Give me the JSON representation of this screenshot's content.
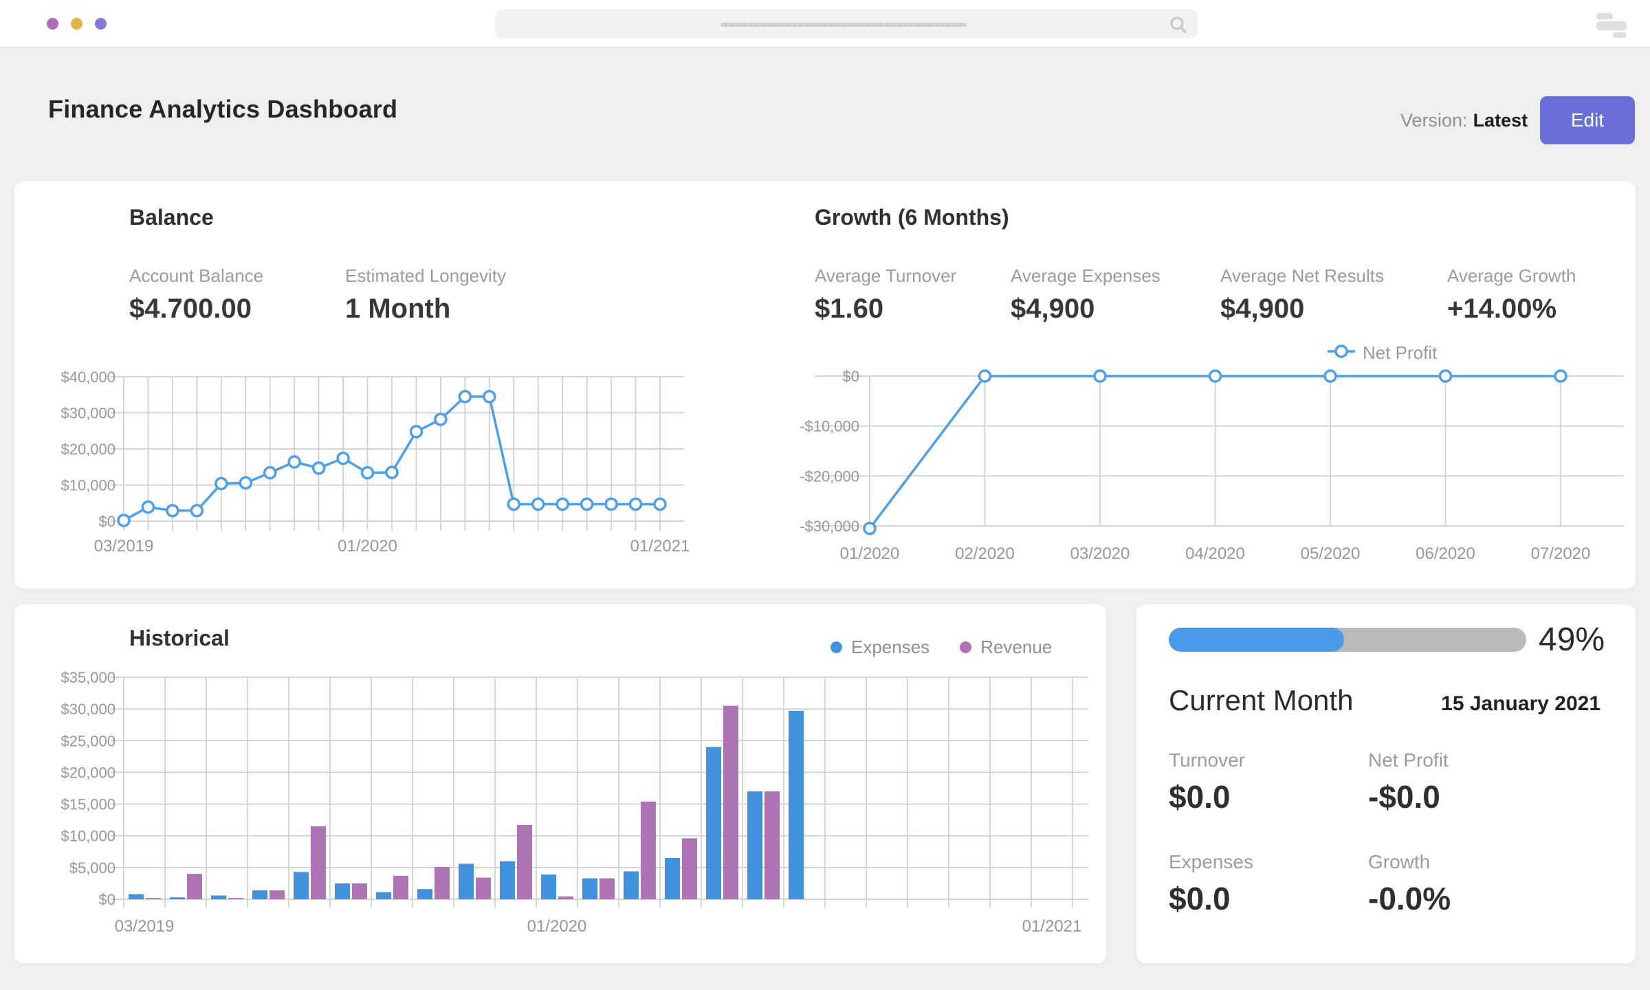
{
  "topbar": {
    "window_dots": [
      {
        "name": "dot-1",
        "color": "#b16ab6"
      },
      {
        "name": "dot-2",
        "color": "#e2b44c"
      },
      {
        "name": "dot-3",
        "color": "#8478dd"
      }
    ],
    "search": {
      "value": "",
      "placeholder": ""
    }
  },
  "header": {
    "title": "Finance Analytics Dashboard",
    "version_label": "Version:",
    "version_value": "Latest",
    "edit_button": "Edit"
  },
  "balance": {
    "title": "Balance",
    "stats": [
      {
        "label": "Account Balance",
        "value": "$4.700.00"
      },
      {
        "label": "Estimated Longevity",
        "value": "1 Month"
      }
    ]
  },
  "growth": {
    "title": "Growth (6 Months)",
    "stats": [
      {
        "label": "Average Turnover",
        "value": "$1.60"
      },
      {
        "label": "Average Expenses",
        "value": "$4,900"
      },
      {
        "label": "Average Net Results",
        "value": "$4,900"
      },
      {
        "label": "Average Growth",
        "value": "+14.00%"
      }
    ],
    "legend": [
      {
        "label": "Net Profit",
        "color": "#4e9fe8"
      }
    ]
  },
  "historical": {
    "title": "Historical",
    "legend": [
      {
        "label": "Expenses",
        "color": "#4191dc"
      },
      {
        "label": "Revenue",
        "color": "#ad73b5"
      }
    ]
  },
  "current_month": {
    "progress_value": 49,
    "progress_percent": "49%",
    "title": "Current Month",
    "date": "15 January 2021",
    "stats": [
      {
        "label": "Turnover",
        "value": "$0.0"
      },
      {
        "label": "Net Profit",
        "value": "-$0.0"
      },
      {
        "label": "Expenses",
        "value": "$0.0"
      },
      {
        "label": "Growth",
        "value": "-0.0%"
      }
    ]
  },
  "chart_data": [
    {
      "id": "balance",
      "type": "line",
      "title": "Balance",
      "line_color": "#4e9fe8",
      "x": [
        "03/2019",
        "04/2019",
        "05/2019",
        "06/2019",
        "07/2019",
        "08/2019",
        "09/2019",
        "10/2019",
        "11/2019",
        "12/2019",
        "01/2020",
        "02/2020",
        "03/2020",
        "04/2020",
        "05/2020",
        "06/2020",
        "07/2020",
        "08/2020",
        "09/2020",
        "10/2020",
        "11/2020",
        "12/2020",
        "01/2021"
      ],
      "values": [
        200,
        3900,
        2900,
        2900,
        10400,
        10600,
        13400,
        16400,
        14700,
        17400,
        13400,
        13500,
        24800,
        28200,
        34500,
        34500,
        4700,
        4700,
        4700,
        4700,
        4700,
        4700,
        4700
      ],
      "ylim": [
        0,
        40000
      ],
      "yticks": [
        {
          "value": 0,
          "label": "$0"
        },
        {
          "value": 10000,
          "label": "$10,000"
        },
        {
          "value": 20000,
          "label": "$20,000"
        },
        {
          "value": 30000,
          "label": "$30,000"
        },
        {
          "value": 40000,
          "label": "$40,000"
        }
      ],
      "x_axis_labels": [
        {
          "index": 0,
          "label": "03/2019"
        },
        {
          "index": 10,
          "label": "01/2020"
        },
        {
          "index": 22,
          "label": "01/2021"
        }
      ],
      "grid": true,
      "legend_position": "none"
    },
    {
      "id": "growth",
      "type": "line",
      "title": "Growth (6 Months)",
      "line_color": "#4e9fe8",
      "series_name": "Net Profit",
      "x": [
        "01/2020",
        "02/2020",
        "03/2020",
        "04/2020",
        "05/2020",
        "06/2020",
        "07/2020"
      ],
      "values": [
        -30500,
        0,
        0,
        0,
        0,
        0,
        0
      ],
      "ylim": [
        -30000,
        0
      ],
      "yticks": [
        {
          "value": 0,
          "label": "$0"
        },
        {
          "value": -10000,
          "label": "-$10,000"
        },
        {
          "value": -20000,
          "label": "-$20,000"
        },
        {
          "value": -30000,
          "label": "-$30,000"
        }
      ],
      "grid": true,
      "legend_position": "top"
    },
    {
      "id": "historical",
      "type": "bar",
      "title": "Historical",
      "x": [
        "03/2019",
        "04/2019",
        "05/2019",
        "06/2019",
        "07/2019",
        "08/2019",
        "09/2019",
        "10/2019",
        "11/2019",
        "12/2019",
        "01/2020",
        "02/2020",
        "03/2020",
        "04/2020",
        "05/2020",
        "06/2020",
        "07/2020",
        "08/2020",
        "09/2020",
        "10/2020",
        "11/2020",
        "12/2020",
        "01/2021"
      ],
      "series": [
        {
          "name": "Expenses",
          "color": "#4191dc",
          "values": [
            800,
            300,
            600,
            1400,
            4300,
            2500,
            1100,
            1600,
            5600,
            6000,
            3900,
            3300,
            4400,
            6500,
            24000,
            17000,
            29700
          ]
        },
        {
          "name": "Revenue",
          "color": "#ad73b5",
          "values": [
            200,
            4000,
            200,
            1400,
            11500,
            2500,
            3700,
            5100,
            3400,
            11700,
            450,
            3300,
            15400,
            9600,
            30500,
            17000,
            0
          ]
        }
      ],
      "ylim": [
        0,
        35000
      ],
      "yticks": [
        {
          "value": 0,
          "label": "$0"
        },
        {
          "value": 5000,
          "label": "$5,000"
        },
        {
          "value": 10000,
          "label": "$10,000"
        },
        {
          "value": 15000,
          "label": "$15,000"
        },
        {
          "value": 20000,
          "label": "$20,000"
        },
        {
          "value": 25000,
          "label": "$25,000"
        },
        {
          "value": 30000,
          "label": "$30,000"
        },
        {
          "value": 35000,
          "label": "$35,000"
        }
      ],
      "x_axis_labels": [
        {
          "index": 0,
          "label": "03/2019"
        },
        {
          "index": 10,
          "label": "01/2020"
        },
        {
          "index": 22,
          "label": "01/2021"
        }
      ],
      "grid": true,
      "legend_position": "top-right"
    }
  ]
}
